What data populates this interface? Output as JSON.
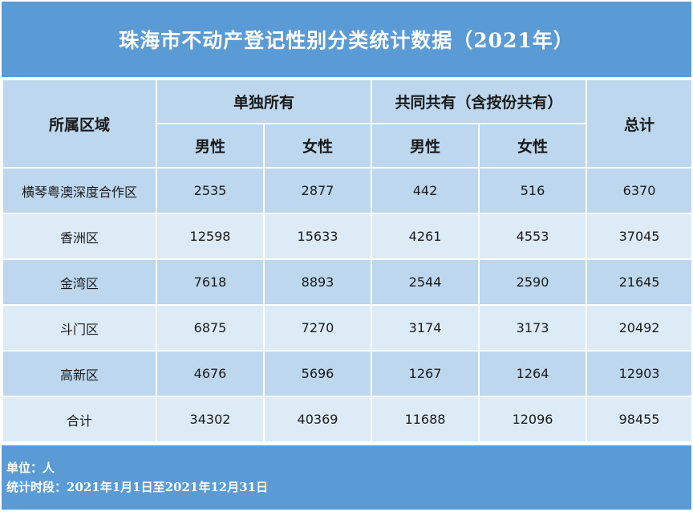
{
  "title": "珠海市不动产登记性别分类统计数据（2021年）",
  "headers": {
    "region": "所属区域",
    "sole": "单独所有",
    "joint": "共同共有（含按份共有）",
    "total": "总计",
    "male": "男性",
    "female": "女性"
  },
  "rows": [
    {
      "region": "横琴粤澳深度合作区",
      "sole_male": "2535",
      "sole_female": "2877",
      "joint_male": "442",
      "joint_female": "516",
      "total": "6370"
    },
    {
      "region": "香洲区",
      "sole_male": "12598",
      "sole_female": "15633",
      "joint_male": "4261",
      "joint_female": "4553",
      "total": "37045"
    },
    {
      "region": "金湾区",
      "sole_male": "7618",
      "sole_female": "8893",
      "joint_male": "2544",
      "joint_female": "2590",
      "total": "21645"
    },
    {
      "region": "斗门区",
      "sole_male": "6875",
      "sole_female": "7270",
      "joint_male": "3174",
      "joint_female": "3173",
      "total": "20492"
    },
    {
      "region": "高新区",
      "sole_male": "4676",
      "sole_female": "5696",
      "joint_male": "1267",
      "joint_female": "1264",
      "total": "12903"
    },
    {
      "region": "合计",
      "sole_male": "34302",
      "sole_female": "40369",
      "joint_male": "11688",
      "joint_female": "12096",
      "total": "98455"
    }
  ],
  "footer": {
    "unit": "单位：人",
    "period": "统计时段：2021年1月1日至2021年12月31日"
  },
  "colors": {
    "banner": "#5b9bd5",
    "header_bg": "#bdd7ee",
    "row_light": "#ddebf7"
  }
}
